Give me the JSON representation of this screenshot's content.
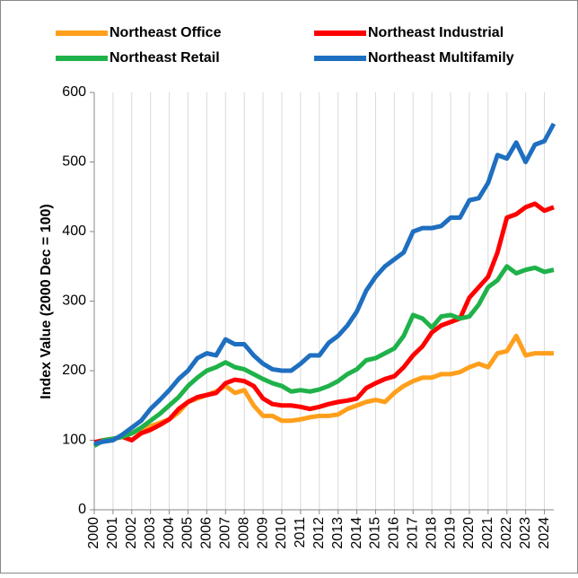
{
  "chart_data": {
    "type": "line",
    "y_label": "Index Value (2000 Dec = 100)",
    "x": [
      2000,
      2000.5,
      2001,
      2001.5,
      2002,
      2002.5,
      2003,
      2003.5,
      2004,
      2004.5,
      2005,
      2005.5,
      2006,
      2006.5,
      2007,
      2007.5,
      2008,
      2008.5,
      2009,
      2009.5,
      2010,
      2010.5,
      2011,
      2011.5,
      2012,
      2012.5,
      2013,
      2013.5,
      2014,
      2014.5,
      2015,
      2015.5,
      2016,
      2016.5,
      2017,
      2017.5,
      2018,
      2018.5,
      2019,
      2019.5,
      2020,
      2020.5,
      2021,
      2021.5,
      2022,
      2022.5,
      2023,
      2023.5,
      2024,
      2024.5
    ],
    "xlim": [
      2000,
      2024.5
    ],
    "xticks": [
      2000,
      2001,
      2002,
      2003,
      2004,
      2005,
      2006,
      2007,
      2008,
      2009,
      2010,
      2011,
      2012,
      2013,
      2014,
      2015,
      2016,
      2017,
      2018,
      2019,
      2020,
      2021,
      2022,
      2023,
      2024
    ],
    "ylim": [
      0,
      600
    ],
    "yticks": [
      0,
      100,
      200,
      300,
      400,
      500,
      600
    ],
    "grid": "x",
    "series": [
      {
        "name": "Northeast Office",
        "color": "#ff9f1c",
        "values": [
          92,
          100,
          102,
          105,
          110,
          115,
          120,
          125,
          130,
          140,
          155,
          160,
          165,
          170,
          178,
          168,
          172,
          150,
          135,
          135,
          128,
          128,
          130,
          133,
          135,
          135,
          137,
          145,
          150,
          155,
          158,
          155,
          168,
          178,
          185,
          190,
          190,
          195,
          195,
          198,
          205,
          210,
          205,
          225,
          228,
          250,
          222,
          225,
          225,
          225
        ]
      },
      {
        "name": "Northeast Industrial",
        "color": "#ff0000",
        "values": [
          97,
          100,
          102,
          105,
          100,
          110,
          115,
          122,
          130,
          145,
          155,
          162,
          165,
          168,
          182,
          187,
          185,
          178,
          160,
          152,
          150,
          150,
          148,
          145,
          148,
          152,
          155,
          157,
          160,
          175,
          182,
          188,
          192,
          205,
          222,
          235,
          255,
          265,
          270,
          275,
          305,
          320,
          335,
          370,
          420,
          425,
          435,
          440,
          430,
          435
        ]
      },
      {
        "name": "Northeast Retail",
        "color": "#1fb24a",
        "values": [
          92,
          100,
          102,
          105,
          110,
          118,
          128,
          138,
          150,
          162,
          178,
          190,
          200,
          205,
          212,
          205,
          202,
          195,
          188,
          182,
          178,
          170,
          172,
          170,
          173,
          178,
          185,
          195,
          202,
          215,
          218,
          225,
          232,
          250,
          280,
          275,
          262,
          278,
          280,
          275,
          278,
          295,
          320,
          330,
          350,
          340,
          345,
          348,
          342,
          345
        ]
      },
      {
        "name": "Northeast Multifamily",
        "color": "#1f6fc0",
        "values": [
          95,
          98,
          100,
          108,
          118,
          128,
          145,
          158,
          172,
          188,
          200,
          218,
          225,
          222,
          245,
          238,
          238,
          222,
          210,
          202,
          200,
          200,
          210,
          222,
          222,
          240,
          250,
          265,
          285,
          315,
          335,
          350,
          360,
          370,
          400,
          405,
          405,
          408,
          420,
          420,
          445,
          448,
          470,
          510,
          505,
          528,
          500,
          525,
          530,
          555
        ]
      }
    ]
  }
}
